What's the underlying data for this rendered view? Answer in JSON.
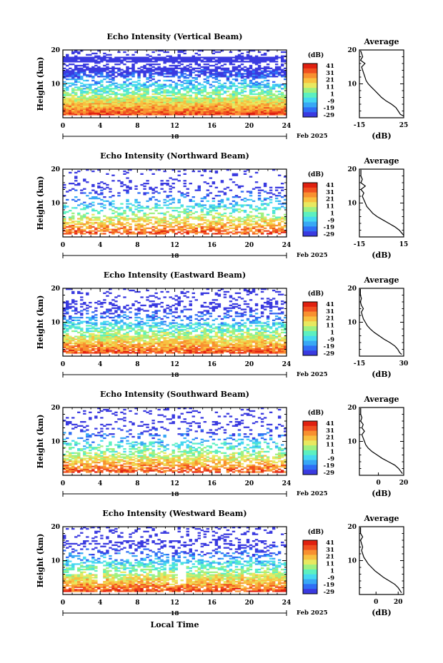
{
  "figure": {
    "xlabel": "Local Time",
    "date_label": "Feb 2025",
    "day_marker": "18",
    "colorbar_unit": "(dB)",
    "avg_title": "Average",
    "avg_xlabel": "(dB)"
  },
  "colors": {
    "scale": [
      "#3a3ae0",
      "#2f6ef5",
      "#38a8f5",
      "#45d8f0",
      "#5cf0c0",
      "#a0f080",
      "#e8e860",
      "#f8c040",
      "#f89030",
      "#f05020",
      "#e02010"
    ]
  },
  "chart_data": [
    {
      "type": "heatmap",
      "title": "Echo Intensity (Vertical Beam)",
      "ylabel": "Height (km)",
      "xlim": [
        0,
        24
      ],
      "ylim": [
        0,
        20
      ],
      "xticks": [
        0,
        4,
        8,
        12,
        16,
        20,
        24
      ],
      "yticks": [
        10,
        20
      ],
      "colorbar_ticks": [
        41,
        31,
        21,
        11,
        1,
        -9,
        -19,
        -29
      ],
      "avg_xlim": [
        -15,
        25
      ],
      "avg_xticks": [
        "-15",
        "25"
      ],
      "profile": [
        [
          0.5,
          25
        ],
        [
          1,
          22
        ],
        [
          2,
          20
        ],
        [
          3,
          18
        ],
        [
          4,
          14
        ],
        [
          5,
          9
        ],
        [
          6,
          5
        ],
        [
          7,
          2
        ],
        [
          8,
          -1
        ],
        [
          9,
          -4
        ],
        [
          10,
          -7
        ],
        [
          11,
          -9
        ],
        [
          12,
          -10
        ],
        [
          13,
          -11
        ],
        [
          14,
          -12
        ],
        [
          15,
          -13
        ],
        [
          16,
          -10
        ],
        [
          17,
          -14
        ],
        [
          18,
          -12
        ],
        [
          19,
          -13
        ],
        [
          19.8,
          -14
        ]
      ]
    },
    {
      "type": "heatmap",
      "title": "Echo Intensity (Northward Beam)",
      "ylabel": "Height (km)",
      "xlim": [
        0,
        24
      ],
      "ylim": [
        0,
        20
      ],
      "xticks": [
        0,
        4,
        8,
        12,
        16,
        20,
        24
      ],
      "yticks": [
        10,
        20
      ],
      "colorbar_ticks": [
        41,
        31,
        21,
        11,
        1,
        -9,
        -19,
        -29
      ],
      "avg_xlim": [
        -15,
        15
      ],
      "avg_xticks": [
        "-15",
        "15"
      ],
      "profile": [
        [
          0.5,
          15
        ],
        [
          1,
          14
        ],
        [
          2,
          12
        ],
        [
          3,
          9
        ],
        [
          4,
          5
        ],
        [
          5,
          1
        ],
        [
          6,
          -3
        ],
        [
          7,
          -6
        ],
        [
          8,
          -8
        ],
        [
          9,
          -10
        ],
        [
          10,
          -11
        ],
        [
          11,
          -12
        ],
        [
          12,
          -13
        ],
        [
          13,
          -12
        ],
        [
          14,
          -14
        ],
        [
          15,
          -11
        ],
        [
          16,
          -14
        ],
        [
          17,
          -13
        ],
        [
          18,
          -14
        ],
        [
          19.8,
          -14
        ]
      ]
    },
    {
      "type": "heatmap",
      "title": "Echo Intensity (Eastward Beam)",
      "ylabel": "Height (km)",
      "xlim": [
        0,
        24
      ],
      "ylim": [
        0,
        20
      ],
      "xticks": [
        0,
        4,
        8,
        12,
        16,
        20,
        24
      ],
      "yticks": [
        10,
        20
      ],
      "colorbar_ticks": [
        41,
        31,
        21,
        11,
        1,
        -9,
        -19,
        -29
      ],
      "avg_xlim": [
        -15,
        30
      ],
      "avg_xticks": [
        "-15",
        "30"
      ],
      "profile": [
        [
          0.5,
          28
        ],
        [
          1,
          26
        ],
        [
          2,
          24
        ],
        [
          3,
          21
        ],
        [
          4,
          16
        ],
        [
          5,
          10
        ],
        [
          6,
          5
        ],
        [
          7,
          0
        ],
        [
          8,
          -4
        ],
        [
          9,
          -7
        ],
        [
          10,
          -9
        ],
        [
          11,
          -11
        ],
        [
          12,
          -12
        ],
        [
          13,
          -13
        ],
        [
          14,
          -11
        ],
        [
          15,
          -13
        ],
        [
          16,
          -14
        ],
        [
          17,
          -13
        ],
        [
          18,
          -14
        ],
        [
          19.8,
          -14
        ]
      ]
    },
    {
      "type": "heatmap",
      "title": "Echo Intensity (Southward Beam)",
      "ylabel": "Height (km)",
      "xlim": [
        0,
        24
      ],
      "ylim": [
        0,
        20
      ],
      "xticks": [
        0,
        4,
        8,
        12,
        16,
        20,
        24
      ],
      "yticks": [
        10,
        20
      ],
      "colorbar_ticks": [
        41,
        31,
        21,
        11,
        1,
        -9,
        -19,
        -29
      ],
      "avg_xlim": [
        -15,
        20
      ],
      "avg_xticks": [
        "0",
        "20"
      ],
      "avg_xtick_values": [
        0,
        20
      ],
      "profile": [
        [
          0.5,
          19
        ],
        [
          1,
          18
        ],
        [
          2,
          16
        ],
        [
          3,
          13
        ],
        [
          4,
          8
        ],
        [
          5,
          3
        ],
        [
          6,
          -1
        ],
        [
          7,
          -5
        ],
        [
          8,
          -8
        ],
        [
          9,
          -10
        ],
        [
          10,
          -11
        ],
        [
          11,
          -12
        ],
        [
          12,
          -13
        ],
        [
          13,
          -11
        ],
        [
          14,
          -13
        ],
        [
          15,
          -12
        ],
        [
          16,
          -14
        ],
        [
          17,
          -13
        ],
        [
          18,
          -14
        ],
        [
          19.8,
          -14
        ]
      ]
    },
    {
      "type": "heatmap",
      "title": "Echo Intensity (Westward Beam)",
      "ylabel": "Height (km)",
      "xlim": [
        0,
        24
      ],
      "ylim": [
        0,
        20
      ],
      "xticks": [
        0,
        4,
        8,
        12,
        16,
        20,
        24
      ],
      "yticks": [
        10,
        20
      ],
      "colorbar_ticks": [
        41,
        31,
        21,
        11,
        1,
        -9,
        -19,
        -29
      ],
      "avg_xlim": [
        -15,
        25
      ],
      "avg_xticks": [
        "0",
        "20"
      ],
      "avg_xtick_values": [
        0,
        20
      ],
      "profile": [
        [
          0.5,
          23
        ],
        [
          1,
          22
        ],
        [
          2,
          20
        ],
        [
          3,
          17
        ],
        [
          4,
          12
        ],
        [
          5,
          7
        ],
        [
          6,
          3
        ],
        [
          7,
          -1
        ],
        [
          8,
          -4
        ],
        [
          9,
          -7
        ],
        [
          10,
          -9
        ],
        [
          11,
          -11
        ],
        [
          12,
          -12
        ],
        [
          13,
          -13
        ],
        [
          14,
          -12
        ],
        [
          15,
          -13
        ],
        [
          16,
          -14
        ],
        [
          17,
          -12
        ],
        [
          18,
          -14
        ],
        [
          19.8,
          -14
        ]
      ]
    }
  ]
}
